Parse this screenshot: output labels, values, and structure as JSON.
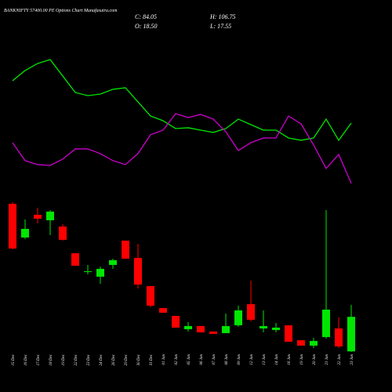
{
  "chart_data": {
    "type": "candlestick",
    "title": "BANKNIFTY 57400.00 PE Options Chart Munafasutra.com",
    "summary": [
      "C: 84.05",
      "O: 18.50",
      "H: 106.75",
      "L: 17.55"
    ],
    "categories": [
      "15 Dec",
      "16 Dec",
      "17 Dec",
      "18 Dec",
      "19 Dec",
      "22 Dec",
      "23 Dec",
      "24 Dec",
      "26 Dec",
      "29 Dec",
      "30 Dec",
      "31 Dec",
      "01 Jan",
      "02 Jan",
      "05 Jan",
      "06 Jan",
      "07 Jan",
      "08 Jan",
      "09 Jan",
      "12 Jan",
      "13 Jan",
      "14 Jan",
      "16 Jan",
      "19 Jan",
      "20 Jan",
      "21 Jan",
      "22 Jan",
      "23 Jan"
    ],
    "open": [
      298.9,
      234.8,
      278.0,
      267.6,
      255.7,
      205.0,
      169.3,
      160.4,
      182.7,
      228.9,
      196.1,
      142.5,
      100.8,
      85.9,
      60.6,
      66.6,
      56.2,
      53.2,
      68.1,
      108.3,
      62.1,
      59.1,
      68.1,
      39.8,
      29.4,
      45.7,
      62.1,
      18.5
    ],
    "high": [
      301.8,
      269.1,
      291.4,
      286.9,
      260.1,
      205.0,
      182.7,
      179.7,
      194.6,
      228.9,
      222.9,
      142.5,
      100.8,
      85.9,
      74.0,
      66.6,
      56.2,
      90.4,
      105.3,
      152.9,
      96.4,
      72.5,
      68.1,
      39.8,
      44.2,
      286.9,
      83.0,
      106.75
    ],
    "low": [
      212.5,
      231.9,
      261.6,
      239.3,
      228.9,
      181.2,
      164.8,
      147.0,
      175.3,
      194.6,
      138.0,
      102.3,
      91.9,
      63.6,
      56.2,
      54.7,
      51.7,
      53.2,
      65.1,
      75.5,
      54.7,
      54.7,
      36.8,
      29.4,
      24.9,
      42.8,
      24.9,
      17.55
    ],
    "close": [
      214.0,
      251.2,
      270.6,
      284.0,
      230.4,
      181.2,
      170.8,
      175.3,
      191.7,
      194.6,
      145.5,
      105.3,
      91.9,
      63.6,
      66.6,
      54.7,
      51.7,
      66.6,
      96.4,
      78.5,
      66.6,
      63.6,
      36.8,
      29.4,
      38.3,
      97.8,
      27.9,
      84.05
    ],
    "up_color": "#00e600",
    "down_color": "#ff0000",
    "lines": [
      {
        "color": "#00e600",
        "values": [
          532.6,
          552.0,
          565.4,
          572.8,
          541.6,
          510.3,
          504.3,
          507.3,
          516.3,
          519.2,
          492.4,
          465.6,
          456.7,
          441.8,
          443.3,
          438.8,
          434.4,
          441.8,
          459.7,
          449.2,
          438.8,
          438.8,
          423.9,
          419.5,
          423.9,
          459.7,
          419.5,
          452.2
        ]
      },
      {
        "color": "#cc00cc",
        "values": [
          415.0,
          380.8,
          373.3,
          371.8,
          383.7,
          403.1,
          403.1,
          394.2,
          380.8,
          373.3,
          394.2,
          429.9,
          438.8,
          470.1,
          462.7,
          468.6,
          459.7,
          435.8,
          400.1,
          415.0,
          423.9,
          423.9,
          465.6,
          450.7,
          410.5,
          365.9,
          392.7,
          337.6
        ]
      }
    ],
    "ylim": [
      -14,
      686
    ]
  }
}
